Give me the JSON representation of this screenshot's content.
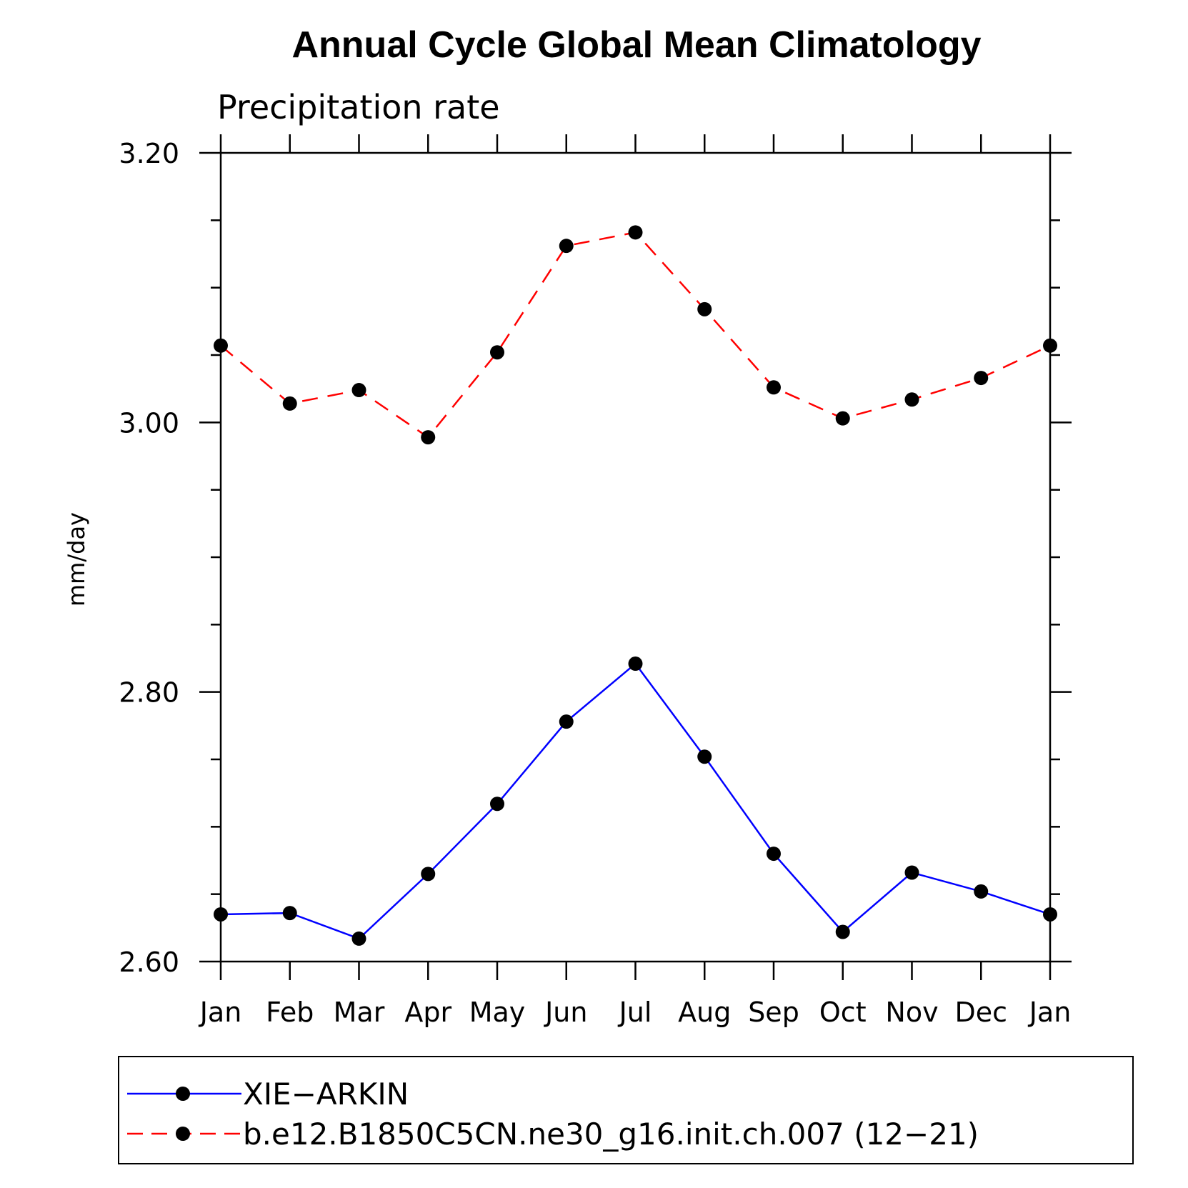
{
  "chart_data": {
    "type": "line",
    "title": "Annual Cycle Global Mean Climatology",
    "subtitle": "Precipitation rate",
    "xlabel": "",
    "ylabel": "mm/day",
    "categories": [
      "Jan",
      "Feb",
      "Mar",
      "Apr",
      "May",
      "Jun",
      "Jul",
      "Aug",
      "Sep",
      "Oct",
      "Nov",
      "Dec",
      "Jan"
    ],
    "ylim": [
      2.6,
      3.2
    ],
    "yticks": [
      "2.60",
      "2.80",
      "3.00",
      "3.20"
    ],
    "series": [
      {
        "name": "XIE−ARKIN",
        "color": "#0000ff",
        "dash": "solid",
        "values": [
          2.635,
          2.636,
          2.617,
          2.665,
          2.717,
          2.778,
          2.821,
          2.752,
          2.68,
          2.622,
          2.666,
          2.652,
          2.635
        ]
      },
      {
        "name": "b.e12.B1850C5CN.ne30_g16.init.ch.007 (12−21)",
        "color": "#ff0000",
        "dash": "dashed",
        "values": [
          3.057,
          3.014,
          3.024,
          2.989,
          3.052,
          3.131,
          3.141,
          3.084,
          3.026,
          3.003,
          3.017,
          3.033,
          3.057
        ]
      }
    ],
    "grid": false,
    "legend_position": "bottom"
  }
}
